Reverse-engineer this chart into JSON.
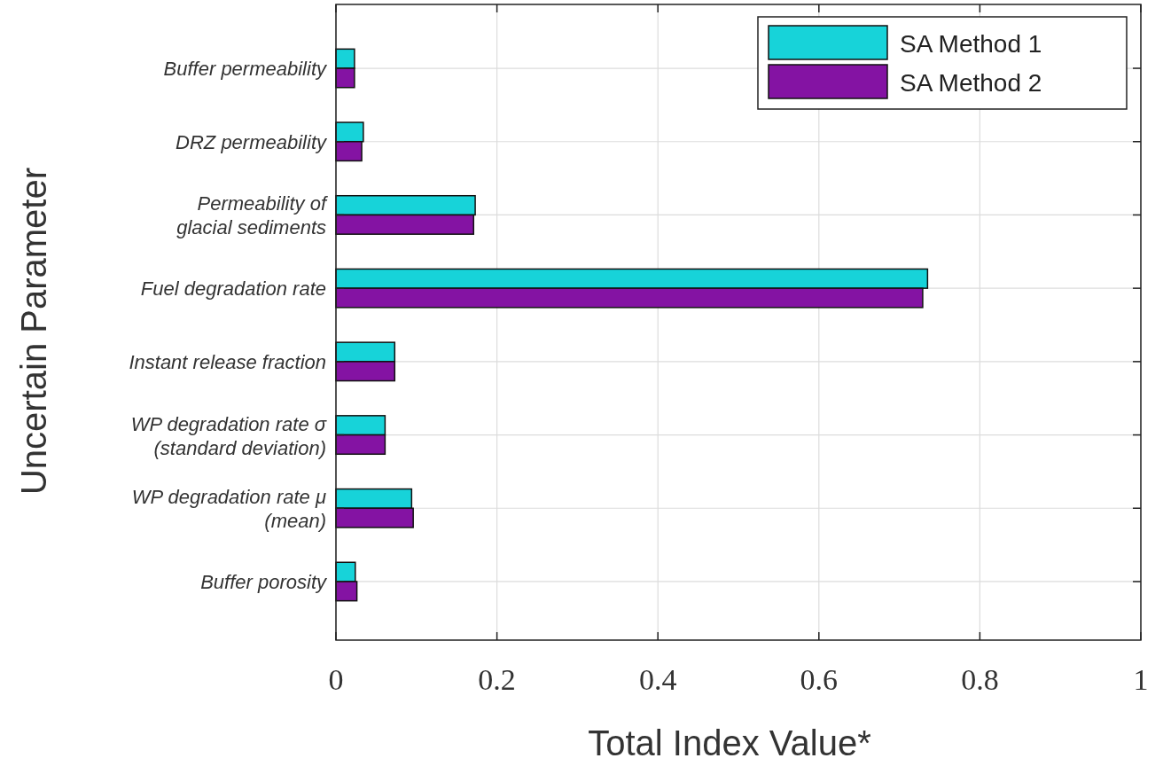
{
  "chart_data": {
    "type": "bar",
    "orientation": "horizontal",
    "xlabel": "Total Index Value*",
    "ylabel": "Uncertain Parameter",
    "categories": [
      "Buffer permeability",
      "DRZ permeability",
      "Permeability of\nglacial sediments",
      "Fuel degradation rate",
      "Instant release fraction",
      "WP degradation rate σ\n(standard deviation)",
      "WP degradation rate μ\n(mean)",
      "Buffer porosity"
    ],
    "series": [
      {
        "name": "SA Method 1",
        "color": "#17d3d9",
        "values": [
          0.023,
          0.034,
          0.173,
          0.735,
          0.073,
          0.061,
          0.094,
          0.024
        ]
      },
      {
        "name": "SA Method 2",
        "color": "#8413a3",
        "values": [
          0.023,
          0.032,
          0.171,
          0.729,
          0.073,
          0.061,
          0.096,
          0.026
        ]
      }
    ],
    "xlim": [
      0,
      1
    ],
    "xticks": [
      0,
      0.2,
      0.4,
      0.6,
      0.8,
      1
    ],
    "grid": true,
    "legend": "top right"
  }
}
